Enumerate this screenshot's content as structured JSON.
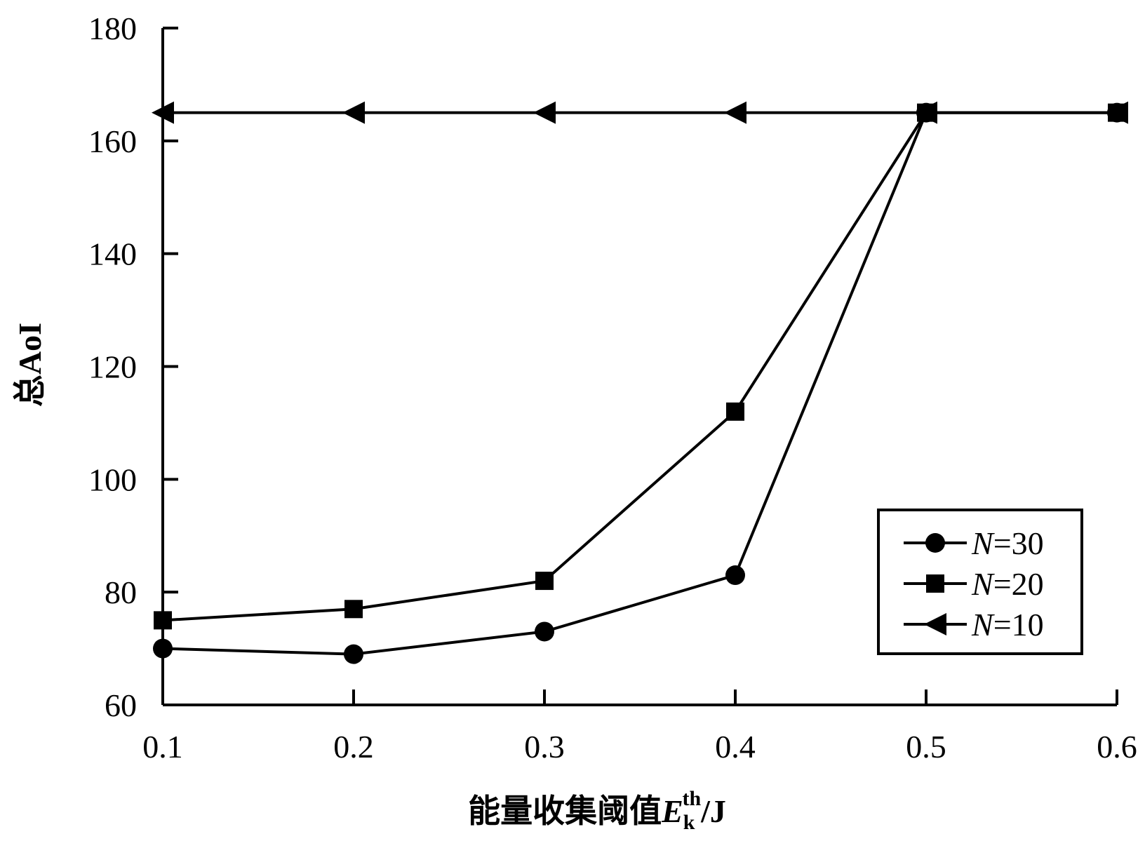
{
  "chart_data": {
    "type": "line",
    "x": [
      0.1,
      0.2,
      0.3,
      0.4,
      0.5,
      0.6
    ],
    "x_tick_labels": [
      "0.1",
      "0.2",
      "0.3",
      "0.4",
      "0.5",
      "0.6"
    ],
    "y_tick_labels": [
      "60",
      "80",
      "100",
      "120",
      "140",
      "160",
      "180"
    ],
    "y_ticks": [
      60,
      80,
      100,
      120,
      140,
      160,
      180
    ],
    "xlim": [
      0.1,
      0.6
    ],
    "ylim": [
      60,
      180
    ],
    "xlabel_main": "能量收集阈值",
    "xlabel_var": "E",
    "xlabel_sub": "k",
    "xlabel_sup": "th",
    "xlabel_unit": "/J",
    "ylabel": "总AoI",
    "grid": false,
    "legend_position": "bottom-right",
    "series": [
      {
        "var": "N",
        "suffix": "=30",
        "marker": "circle",
        "values": [
          70,
          69,
          73,
          83,
          165,
          165
        ]
      },
      {
        "var": "N",
        "suffix": "=20",
        "marker": "square",
        "values": [
          75,
          77,
          82,
          112,
          165,
          165
        ]
      },
      {
        "var": "N",
        "suffix": "=10",
        "marker": "triangle-left",
        "values": [
          165,
          165,
          165,
          165,
          165,
          165
        ]
      }
    ],
    "colors": {
      "line": "#000000",
      "background": "#ffffff"
    }
  }
}
